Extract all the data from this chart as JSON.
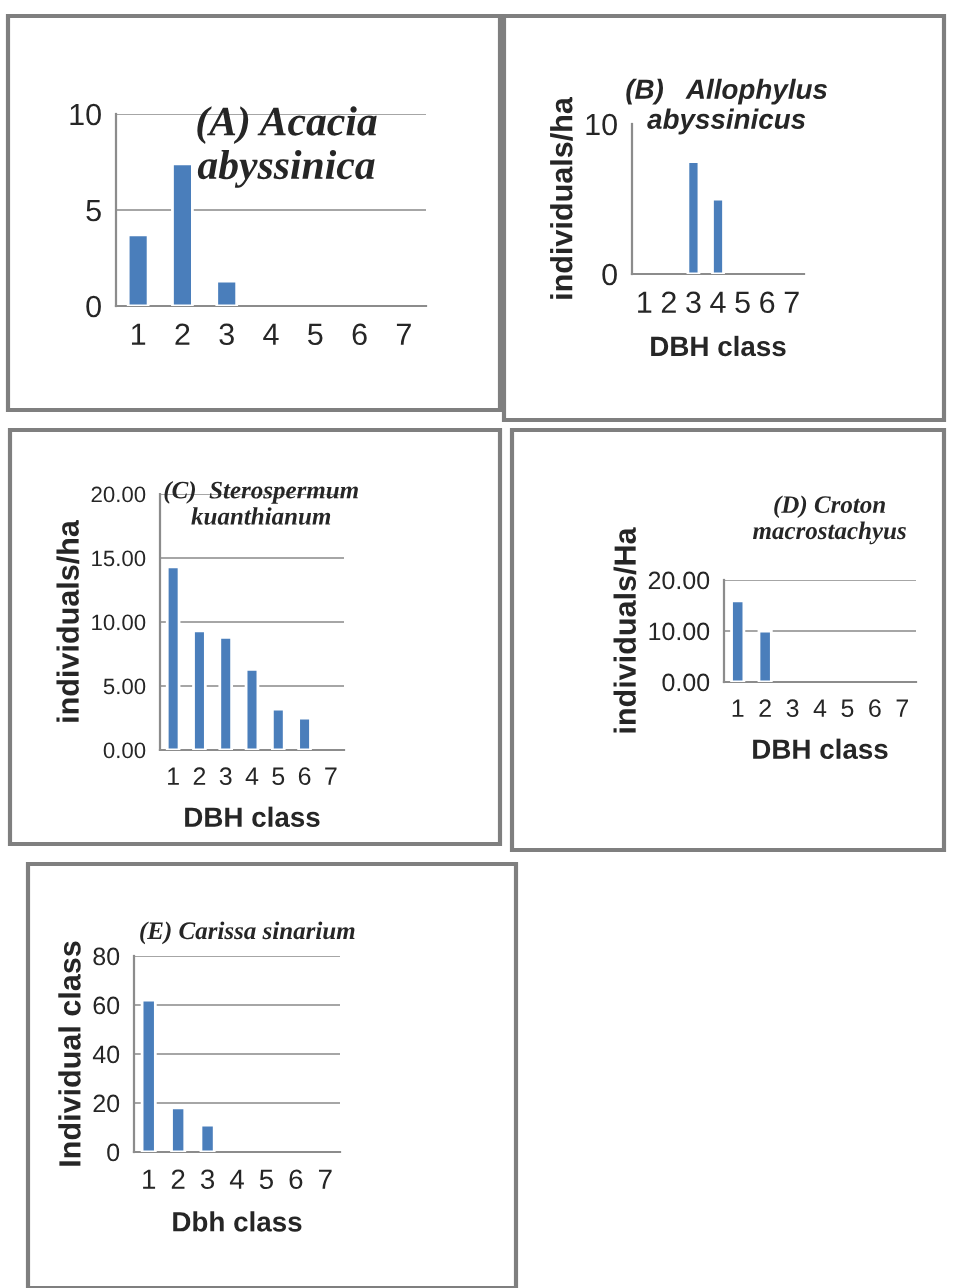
{
  "chart_data": [
    {
      "type": "bar",
      "title": "(A) Acacia abyssinica",
      "categories": [
        "1",
        "2",
        "3",
        "4",
        "5",
        "6",
        "7"
      ],
      "values": [
        3.7,
        7.4,
        1.3,
        null,
        null,
        null,
        null
      ],
      "color": "#4a7ebb",
      "ylim": [
        0,
        10
      ],
      "yticks": [
        0,
        5,
        10
      ],
      "grid": "y"
    },
    {
      "type": "bar",
      "title": "(B)   Allophylus abyssinicus",
      "xlabel": "DBH class",
      "ylabel": "individuals/ha",
      "categories": [
        "1",
        "2",
        "3",
        "4",
        "5",
        "6",
        "7"
      ],
      "values": [
        null,
        null,
        7.5,
        5.0,
        null,
        null,
        null
      ],
      "color": "#4a7ebb",
      "ylim": [
        0,
        10
      ],
      "yticks": [
        0,
        10
      ]
    },
    {
      "type": "bar",
      "title": "(C)  Sterospermum kuanthianum",
      "xlabel": "DBH class",
      "ylabel": "individuals/ha",
      "categories": [
        "1",
        "2",
        "3",
        "4",
        "5",
        "6",
        "7"
      ],
      "values": [
        14.3,
        9.3,
        8.8,
        6.3,
        3.2,
        2.5,
        null
      ],
      "color": "#4a7ebb",
      "ylim": [
        0,
        20
      ],
      "yticks": [
        {
          "value": 0,
          "label": "0.00"
        },
        {
          "value": 5,
          "label": "5.00"
        },
        {
          "value": 10,
          "label": "10.00"
        },
        {
          "value": 15,
          "label": "15.00"
        },
        {
          "value": 20,
          "label": "20.00"
        }
      ],
      "grid": "y"
    },
    {
      "type": "bar",
      "title": "(D) Croton macrostachyus",
      "xlabel": "DBH class",
      "ylabel": "individuals/Ha",
      "categories": [
        "1",
        "2",
        "3",
        "4",
        "5",
        "6",
        "7"
      ],
      "values": [
        15.9,
        10.0,
        null,
        null,
        null,
        null,
        null
      ],
      "color": "#4a7ebb",
      "ylim": [
        0,
        20
      ],
      "yticks": [
        {
          "value": 0,
          "label": "0.00"
        },
        {
          "value": 10,
          "label": "10.00"
        },
        {
          "value": 20,
          "label": "20.00"
        }
      ],
      "grid": "y"
    },
    {
      "type": "bar",
      "title": "(E) Carissa sinarium",
      "xlabel": "Dbh class",
      "ylabel": "Individual class",
      "categories": [
        "1",
        "2",
        "3",
        "4",
        "5",
        "6",
        "7"
      ],
      "values": [
        62,
        18,
        11,
        null,
        null,
        null,
        null
      ],
      "color": "#4a7ebb",
      "ylim": [
        0,
        80
      ],
      "yticks": [
        0,
        20,
        40,
        60,
        80
      ],
      "grid": "y"
    }
  ]
}
